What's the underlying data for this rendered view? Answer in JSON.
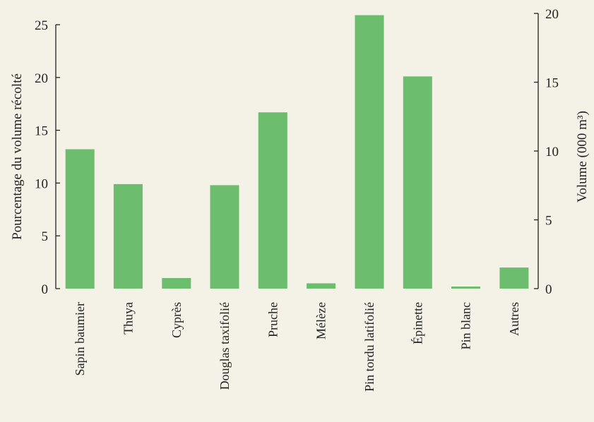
{
  "chart_data": {
    "type": "bar",
    "categories": [
      "Sapin baumier",
      "Thuya",
      "Cyprès",
      "Douglas taxifolié",
      "Pruche",
      "Mélèze",
      "Pin tordu latifolié",
      "Épinette",
      "Pin blanc",
      "Autres"
    ],
    "series": [
      {
        "values": [
          13.2,
          9.9,
          1.0,
          9.8,
          16.7,
          0.5,
          25.9,
          20.1,
          0.2,
          2.0
        ]
      }
    ],
    "ylabel_left": "Pourcentage du volume récolté",
    "ylabel_right": "Volume (000 m³)",
    "ylim_left": [
      0,
      25
    ],
    "ylim_right": [
      0,
      20
    ],
    "yticks_left": [
      "0",
      "5",
      "10",
      "15",
      "20",
      "25"
    ],
    "yticks_right": [
      "0",
      "5",
      "10",
      "15",
      "20"
    ],
    "bar_color": "#6cbd6e",
    "grid": false
  }
}
